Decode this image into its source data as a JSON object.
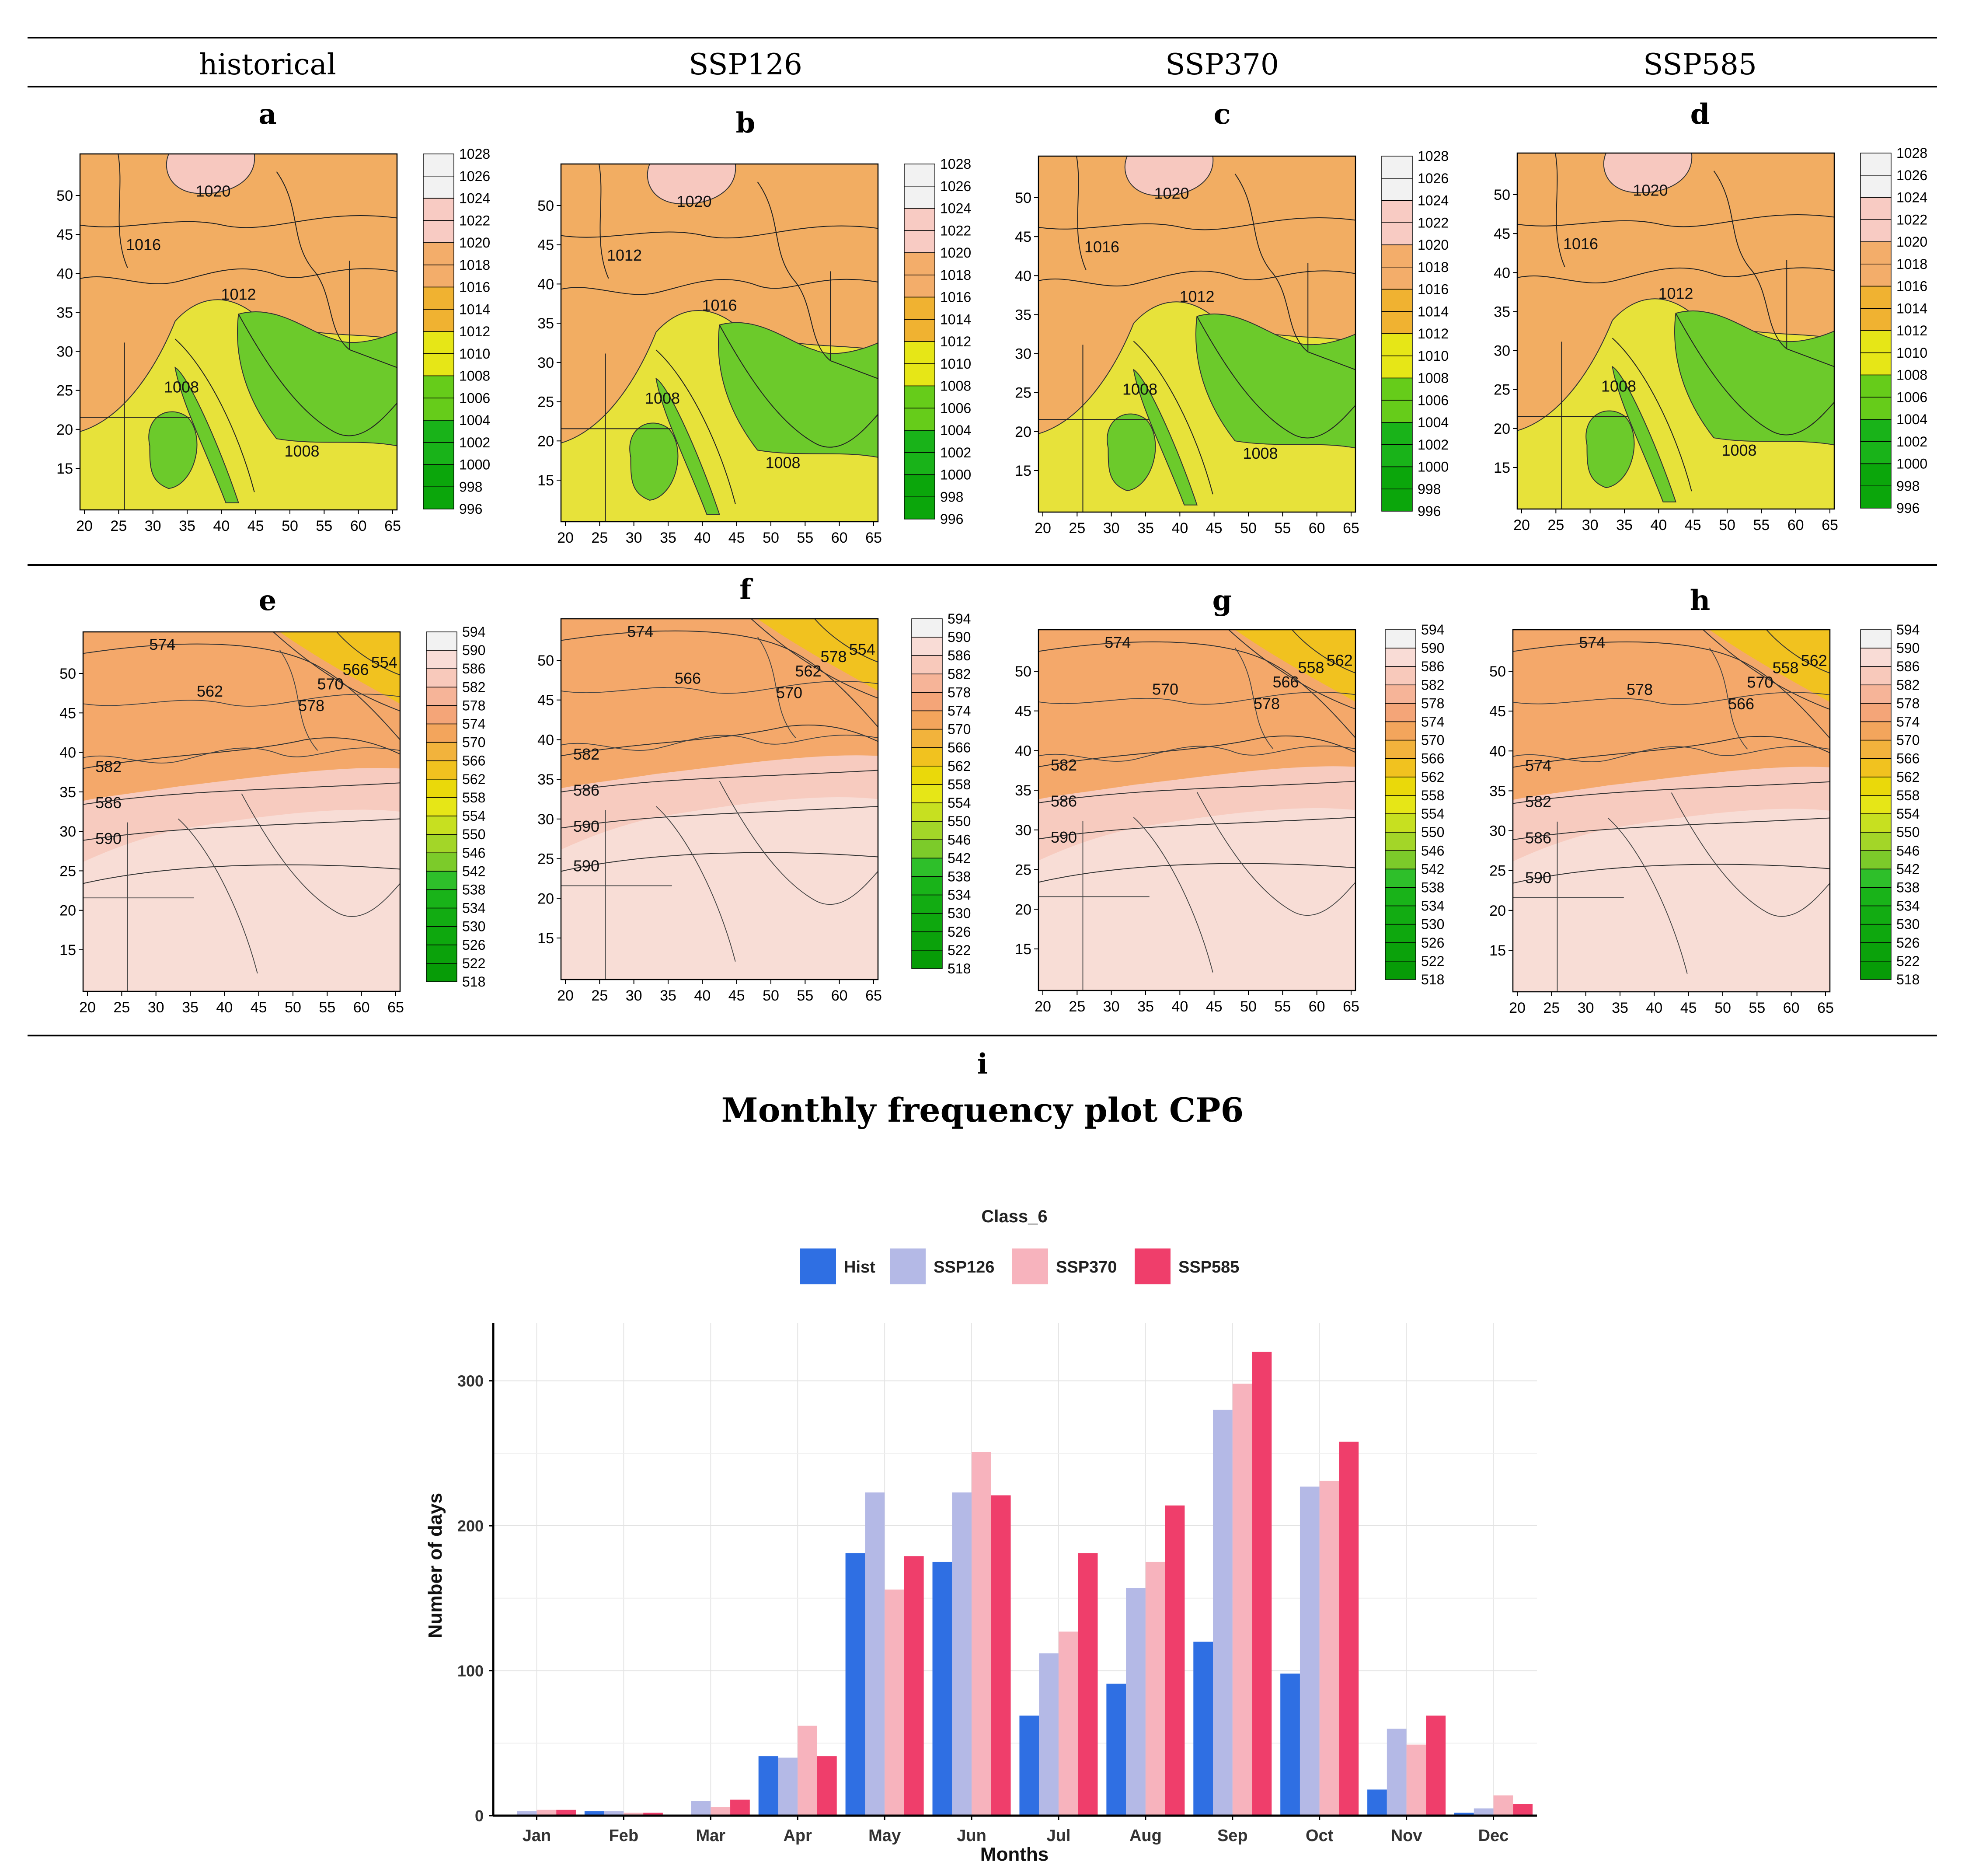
{
  "header": {
    "columns": [
      "historical",
      "SSP126",
      "SSP370",
      "SSP585"
    ]
  },
  "panel_letters": [
    "a",
    "b",
    "c",
    "d",
    "e",
    "f",
    "g",
    "h"
  ],
  "bottom_panel_letter": "i",
  "bottom_title": "Monthly frequency plot CP6",
  "colors": {
    "rule": "#000000",
    "slp_fill": "#f2ad62",
    "slp_pink": "#f7c8bf",
    "slp_yellow": "#e7e23a",
    "slp_green": "#6cca2b",
    "gh_fill": "#f4a86a",
    "gh_light": "#f8ddd6",
    "gh_pink": "#f7cbbf",
    "gh_yellow": "#f1c21f"
  },
  "maps": {
    "x_ticks": [
      "20",
      "25",
      "30",
      "35",
      "40",
      "45",
      "50",
      "55",
      "60",
      "65"
    ],
    "y_ticks_slp": [
      "50",
      "45",
      "40",
      "35",
      "30",
      "25",
      "20",
      "15"
    ],
    "y_ticks_gh": [
      "50",
      "45",
      "40",
      "35",
      "30",
      "25",
      "20",
      "15"
    ],
    "slp_legend": {
      "labels": [
        "1028",
        "1026",
        "1024",
        "1022",
        "1020",
        "1018",
        "1016",
        "1014",
        "1012",
        "1010",
        "1008",
        "1006",
        "1004",
        "1002",
        "1000",
        "998",
        "996"
      ],
      "colors": [
        "#f2f2f2",
        "#f2f2f2",
        "#f8cbc3",
        "#f8cbc3",
        "#f3ad6a",
        "#f3ad6a",
        "#f0b231",
        "#f0b231",
        "#e6e617",
        "#e6e617",
        "#66cc1a",
        "#66cc1a",
        "#19b319",
        "#19b319",
        "#0ba60b",
        "#0ba60b"
      ]
    },
    "gh_legend": {
      "labels": [
        "594",
        "590",
        "586",
        "582",
        "578",
        "574",
        "570",
        "566",
        "562",
        "558",
        "554",
        "550",
        "546",
        "542",
        "538",
        "534",
        "530",
        "526",
        "522",
        "518"
      ],
      "colors": [
        "#f2f2f2",
        "#f9dcd6",
        "#f8c9bb",
        "#f6b498",
        "#f4a578",
        "#f3a55c",
        "#f2b33c",
        "#f1c21f",
        "#ead90a",
        "#e6e617",
        "#c7e020",
        "#a3d628",
        "#7ccb2a",
        "#2ebf2a",
        "#19b319",
        "#12ac12",
        "#0ea80e",
        "#0ba20b",
        "#079c07"
      ]
    },
    "slp_contours": [
      [
        "1020",
        "1016",
        "1012",
        "1008",
        "1008"
      ],
      [
        "1020",
        "1012",
        "1016",
        "1008",
        "1008"
      ],
      [
        "1020",
        "1016",
        "1012",
        "1008",
        "1008"
      ],
      [
        "1020",
        "1016",
        "1012",
        "1008",
        "1008"
      ]
    ],
    "gh_contours": [
      [
        "574",
        "554",
        "566",
        "562",
        "570",
        "578",
        "582",
        "586",
        "590"
      ],
      [
        "574",
        "554",
        "578",
        "566",
        "562",
        "570",
        "582",
        "586",
        "590",
        "590"
      ],
      [
        "574",
        "562",
        "558",
        "570",
        "566",
        "578",
        "582",
        "586",
        "590"
      ],
      [
        "574",
        "562",
        "558",
        "578",
        "570",
        "566",
        "574",
        "582",
        "586",
        "590"
      ]
    ]
  },
  "chart_data": {
    "type": "bar",
    "title": "Class_6",
    "xlabel": "Months",
    "ylabel": "Number of days",
    "categories": [
      "Jan",
      "Feb",
      "Mar",
      "Apr",
      "May",
      "Jun",
      "Jul",
      "Aug",
      "Sep",
      "Oct",
      "Nov",
      "Dec"
    ],
    "ylim": [
      0,
      340
    ],
    "yticks": [
      0,
      100,
      200,
      300
    ],
    "legend": "top",
    "grid": true,
    "series": [
      {
        "name": "Hist",
        "color": "#2f6fe3",
        "values": [
          0,
          3,
          0,
          41,
          181,
          175,
          69,
          91,
          120,
          98,
          18,
          2
        ]
      },
      {
        "name": "SSP126",
        "color": "#b4b9e6",
        "values": [
          3,
          3,
          10,
          40,
          223,
          223,
          112,
          157,
          280,
          227,
          60,
          5
        ]
      },
      {
        "name": "SSP370",
        "color": "#f7b3bd",
        "values": [
          4,
          2,
          6,
          62,
          156,
          251,
          127,
          175,
          298,
          231,
          49,
          14
        ]
      },
      {
        "name": "SSP585",
        "color": "#ef3e6b",
        "values": [
          4,
          2,
          11,
          41,
          179,
          221,
          181,
          214,
          320,
          258,
          69,
          8
        ]
      }
    ]
  }
}
